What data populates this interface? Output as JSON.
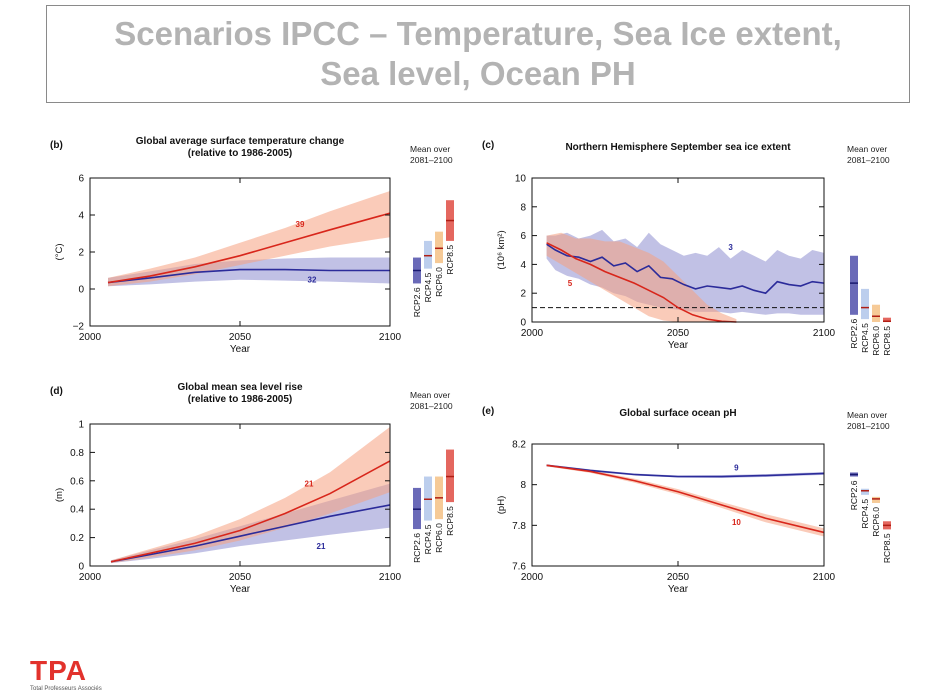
{
  "title": {
    "line1": "Scenarios IPCC – Temperature, Sea Ice extent,",
    "line2": "Sea level, Ocean PH"
  },
  "logo": {
    "mark": "TPA",
    "tagline": "Total Professeurs Associés"
  },
  "colors": {
    "rcp26": "#2b2b9a",
    "rcp45": "#9fb9e6",
    "rcp60": "#f2b36b",
    "rcp85": "#d8261b",
    "low_band": "#8e8ed0",
    "high_band": "#f5a080"
  },
  "chart_data": [
    {
      "id": "b",
      "type": "line",
      "panel_label": "(b)",
      "title": [
        "Global average surface temperature change",
        "(relative to 1986-2005)"
      ],
      "xlabel": "Year",
      "ylabel": "(°C)",
      "xlim": [
        2000,
        2100
      ],
      "ylim": [
        -2,
        6
      ],
      "xticks": [
        2000,
        2050,
        2100
      ],
      "yticks": [
        -2,
        0,
        2,
        4,
        6
      ],
      "mean_label": [
        "Mean over",
        "2081–2100"
      ],
      "series": [
        {
          "name": "RCP2.6",
          "color": "#2b2b9a",
          "x": [
            2006,
            2020,
            2035,
            2050,
            2065,
            2080,
            2100
          ],
          "values": [
            0.35,
            0.6,
            0.9,
            1.05,
            1.05,
            1.0,
            1.0
          ],
          "lower": [
            0.15,
            0.25,
            0.4,
            0.5,
            0.45,
            0.4,
            0.3
          ],
          "upper": [
            0.6,
            0.95,
            1.35,
            1.55,
            1.65,
            1.7,
            1.7
          ],
          "count": "32"
        },
        {
          "name": "RCP8.5",
          "color": "#d8261b",
          "x": [
            2006,
            2020,
            2035,
            2050,
            2065,
            2080,
            2100
          ],
          "values": [
            0.35,
            0.7,
            1.2,
            1.8,
            2.5,
            3.2,
            4.1
          ],
          "lower": [
            0.15,
            0.4,
            0.8,
            1.3,
            1.8,
            2.3,
            2.8
          ],
          "upper": [
            0.6,
            1.1,
            1.7,
            2.5,
            3.3,
            4.2,
            5.3
          ],
          "count": "39"
        }
      ],
      "mean_bars": [
        {
          "name": "RCP2.6",
          "low": 0.3,
          "high": 1.7,
          "mean": 1.0
        },
        {
          "name": "RCP4.5",
          "low": 1.1,
          "high": 2.6,
          "mean": 1.8
        },
        {
          "name": "RCP6.0",
          "low": 1.4,
          "high": 3.1,
          "mean": 2.2
        },
        {
          "name": "RCP8.5",
          "low": 2.6,
          "high": 4.8,
          "mean": 3.7
        }
      ]
    },
    {
      "id": "c",
      "type": "line",
      "panel_label": "(c)",
      "title": [
        "Northern Hemisphere September sea ice extent"
      ],
      "xlabel": "Year",
      "ylabel": "(10⁶ km²)",
      "xlim": [
        2000,
        2100
      ],
      "ylim": [
        0,
        10
      ],
      "xticks": [
        2000,
        2050,
        2100
      ],
      "yticks": [
        0,
        2,
        4,
        6,
        8,
        10
      ],
      "mean_label": [
        "Mean over",
        "2081–2100"
      ],
      "threshold": 1,
      "series": [
        {
          "name": "RCP2.6",
          "color": "#2b2b9a",
          "x": [
            2005,
            2008,
            2012,
            2016,
            2020,
            2024,
            2028,
            2032,
            2036,
            2040,
            2044,
            2048,
            2052,
            2056,
            2060,
            2064,
            2068,
            2072,
            2076,
            2080,
            2084,
            2088,
            2092,
            2096,
            2100
          ],
          "values": [
            5.4,
            5.0,
            4.6,
            4.5,
            4.2,
            4.5,
            3.9,
            4.1,
            3.5,
            3.9,
            3.1,
            3.0,
            2.6,
            2.3,
            2.5,
            2.4,
            2.3,
            2.5,
            2.2,
            2.0,
            2.8,
            2.6,
            2.5,
            2.8,
            2.7
          ],
          "lower": [
            4.4,
            3.6,
            3.2,
            3.0,
            2.6,
            2.4,
            2.0,
            1.8,
            1.4,
            1.2,
            1.0,
            0.9,
            0.8,
            0.7,
            0.7,
            0.7,
            0.6,
            0.7,
            0.6,
            0.5,
            0.6,
            0.6,
            0.5,
            0.5,
            0.5
          ],
          "upper": [
            6.0,
            6.0,
            6.2,
            5.8,
            6.0,
            6.4,
            5.6,
            5.8,
            5.2,
            6.2,
            5.4,
            5.0,
            4.6,
            4.8,
            4.6,
            5.2,
            4.4,
            5.0,
            4.6,
            4.2,
            5.0,
            4.6,
            4.4,
            5.0,
            4.8
          ],
          "count": "3"
        },
        {
          "name": "RCP8.5",
          "color": "#d8261b",
          "x": [
            2005,
            2010,
            2015,
            2020,
            2025,
            2030,
            2035,
            2040,
            2045,
            2050,
            2055,
            2060,
            2065,
            2070
          ],
          "values": [
            5.5,
            5.0,
            4.4,
            4.0,
            3.5,
            3.1,
            2.7,
            2.2,
            1.7,
            1.0,
            0.5,
            0.2,
            0.05,
            0.0
          ],
          "lower": [
            4.6,
            4.0,
            3.4,
            2.8,
            2.2,
            1.6,
            1.0,
            0.4,
            0.1,
            0.0,
            0.0,
            0.0,
            0.0,
            0.0
          ],
          "upper": [
            6.0,
            6.2,
            5.8,
            5.8,
            5.6,
            5.6,
            5.2,
            4.8,
            4.2,
            3.2,
            2.2,
            1.2,
            0.6,
            0.2
          ],
          "count": "5"
        }
      ],
      "mean_bars": [
        {
          "name": "RCP2.6",
          "low": 0.5,
          "high": 4.6,
          "mean": 2.7
        },
        {
          "name": "RCP4.5",
          "low": 0.2,
          "high": 2.3,
          "mean": 1.0
        },
        {
          "name": "RCP6.0",
          "low": 0.0,
          "high": 1.2,
          "mean": 0.4
        },
        {
          "name": "RCP8.5",
          "low": 0.0,
          "high": 0.3,
          "mean": 0.05
        }
      ]
    },
    {
      "id": "d",
      "type": "line",
      "panel_label": "(d)",
      "title": [
        "Global mean sea level rise",
        "(relative to 1986-2005)"
      ],
      "xlabel": "Year",
      "ylabel": "(m)",
      "xlim": [
        2000,
        2100
      ],
      "ylim": [
        0,
        1
      ],
      "xticks": [
        2000,
        2050,
        2100
      ],
      "yticks": [
        0,
        0.2,
        0.4,
        0.6,
        0.8,
        1
      ],
      "mean_label": [
        "Mean over",
        "2081–2100"
      ],
      "series": [
        {
          "name": "RCP2.6",
          "color": "#2b2b9a",
          "x": [
            2007,
            2020,
            2035,
            2050,
            2065,
            2080,
            2100
          ],
          "values": [
            0.03,
            0.08,
            0.14,
            0.21,
            0.28,
            0.35,
            0.43
          ],
          "lower": [
            0.02,
            0.05,
            0.09,
            0.14,
            0.18,
            0.22,
            0.27
          ],
          "upper": [
            0.04,
            0.11,
            0.19,
            0.28,
            0.37,
            0.46,
            0.58
          ],
          "count": "21"
        },
        {
          "name": "RCP8.5",
          "color": "#d8261b",
          "x": [
            2007,
            2020,
            2035,
            2050,
            2065,
            2080,
            2100
          ],
          "values": [
            0.03,
            0.09,
            0.16,
            0.25,
            0.37,
            0.51,
            0.74
          ],
          "lower": [
            0.02,
            0.06,
            0.11,
            0.18,
            0.27,
            0.37,
            0.52
          ],
          "upper": [
            0.04,
            0.12,
            0.21,
            0.33,
            0.48,
            0.66,
            0.98
          ],
          "count": "21"
        }
      ],
      "mean_bars": [
        {
          "name": "RCP2.6",
          "low": 0.26,
          "high": 0.55,
          "mean": 0.4
        },
        {
          "name": "RCP4.5",
          "low": 0.32,
          "high": 0.63,
          "mean": 0.47
        },
        {
          "name": "RCP6.0",
          "low": 0.33,
          "high": 0.63,
          "mean": 0.48
        },
        {
          "name": "RCP8.5",
          "low": 0.45,
          "high": 0.82,
          "mean": 0.63
        }
      ]
    },
    {
      "id": "e",
      "type": "line",
      "panel_label": "(e)",
      "title": [
        "Global surface ocean pH"
      ],
      "xlabel": "Year",
      "ylabel": "(pH)",
      "xlim": [
        2000,
        2100
      ],
      "ylim": [
        7.6,
        8.2
      ],
      "xticks": [
        2000,
        2050,
        2100
      ],
      "yticks": [
        7.6,
        7.8,
        8,
        8.2
      ],
      "mean_label": [
        "Mean over",
        "2081–2100"
      ],
      "series": [
        {
          "name": "RCP2.6",
          "color": "#2b2b9a",
          "x": [
            2005,
            2020,
            2035,
            2050,
            2065,
            2080,
            2100
          ],
          "values": [
            8.095,
            8.07,
            8.05,
            8.04,
            8.04,
            8.045,
            8.055
          ],
          "lower": [
            8.09,
            8.065,
            8.045,
            8.035,
            8.033,
            8.038,
            8.048
          ],
          "upper": [
            8.1,
            8.075,
            8.055,
            8.045,
            8.047,
            8.052,
            8.062
          ],
          "count": "9"
        },
        {
          "name": "RCP8.5",
          "color": "#d8261b",
          "x": [
            2005,
            2020,
            2035,
            2050,
            2065,
            2080,
            2100
          ],
          "values": [
            8.095,
            8.065,
            8.02,
            7.965,
            7.9,
            7.835,
            7.765
          ],
          "lower": [
            8.09,
            8.058,
            8.01,
            7.952,
            7.885,
            7.815,
            7.745
          ],
          "upper": [
            8.1,
            8.072,
            8.03,
            7.978,
            7.915,
            7.855,
            7.785
          ],
          "count": "10"
        }
      ],
      "mean_bars": [
        {
          "name": "RCP2.6",
          "low": 8.04,
          "high": 8.06,
          "mean": 8.05
        },
        {
          "name": "RCP4.5",
          "low": 7.95,
          "high": 7.98,
          "mean": 7.97
        },
        {
          "name": "RCP6.0",
          "low": 7.91,
          "high": 7.94,
          "mean": 7.93
        },
        {
          "name": "RCP8.5",
          "low": 7.78,
          "high": 7.82,
          "mean": 7.8
        }
      ]
    }
  ]
}
